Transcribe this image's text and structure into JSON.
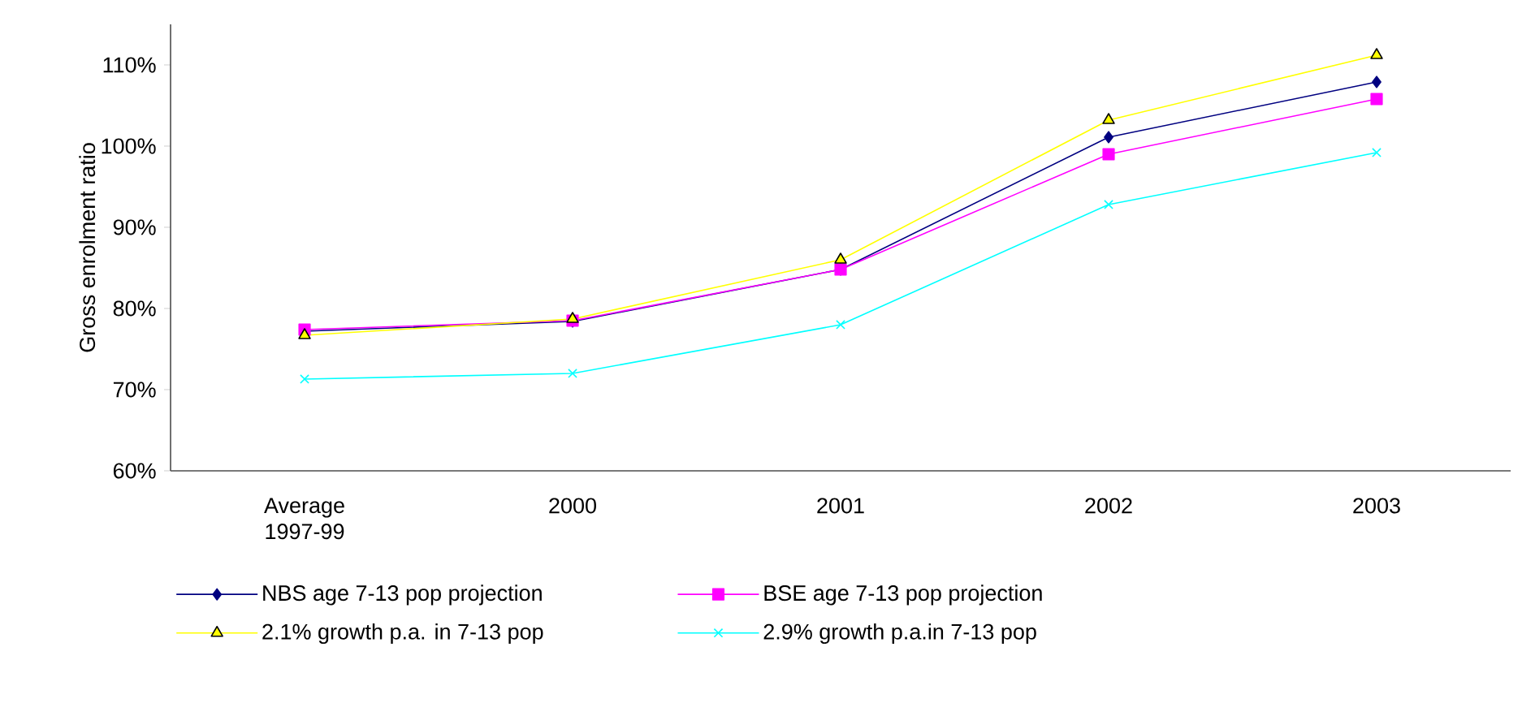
{
  "chart_data": {
    "type": "line",
    "ylabel": "Gross enrolment ratio",
    "categories": [
      "Average 1997-99",
      "2000",
      "2001",
      "2002",
      "2003"
    ],
    "series": [
      {
        "name": "NBS age 7-13 pop projection",
        "color": "#000080",
        "marker": "diamond",
        "values": [
          77.2,
          78.4,
          84.8,
          101.1,
          107.9
        ]
      },
      {
        "name": "BSE age 7-13 pop projection",
        "color": "#ff00ff",
        "marker": "square",
        "values": [
          77.4,
          78.5,
          84.8,
          99.0,
          105.8
        ]
      },
      {
        "name": "2.1% growth p.a. in 7-13 pop",
        "color": "#ffff00",
        "marker": "triangle",
        "values": [
          76.7,
          78.7,
          86.0,
          103.2,
          111.2
        ]
      },
      {
        "name": "2.9% growth p.a.in 7-13 pop",
        "color": "#00ffff",
        "marker": "cross",
        "values": [
          71.3,
          72.0,
          78.0,
          92.8,
          99.2
        ]
      }
    ],
    "ylim": [
      60,
      115
    ],
    "yticks": [
      {
        "value": 60,
        "label": "60%"
      },
      {
        "value": 70,
        "label": "70%"
      },
      {
        "value": 80,
        "label": "80%"
      },
      {
        "value": 90,
        "label": "90%"
      },
      {
        "value": 100,
        "label": "100%"
      },
      {
        "value": 110,
        "label": "110%"
      }
    ],
    "grid": false,
    "legend": "bottom",
    "line_style": "solid"
  }
}
